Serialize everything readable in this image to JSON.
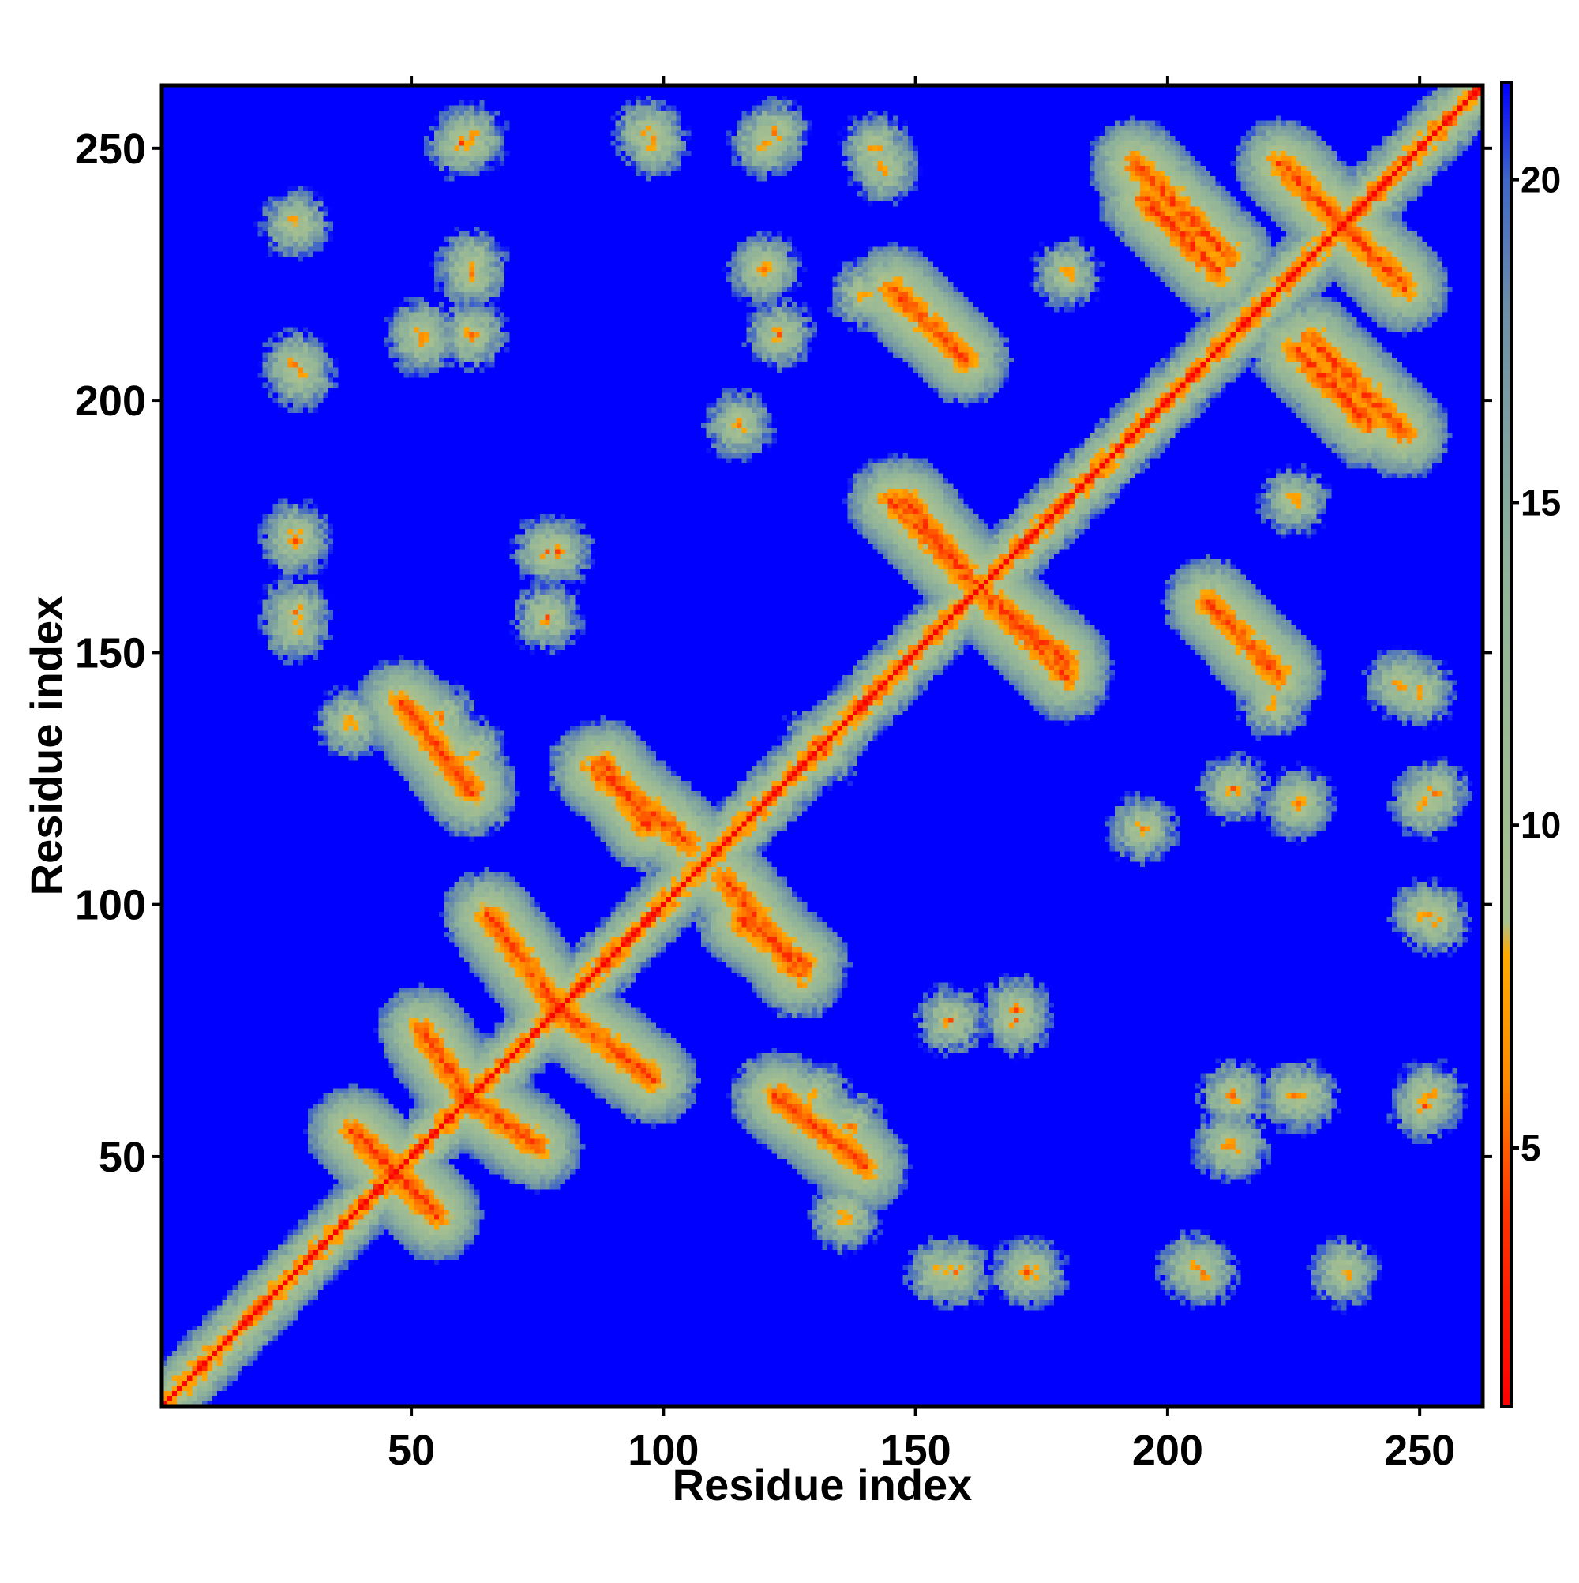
{
  "chart_data": {
    "type": "heatmap",
    "title": "",
    "xlabel": "Residue index",
    "ylabel": "Residue index",
    "xlim": [
      1,
      262
    ],
    "ylim": [
      1,
      262
    ],
    "x_ticks": [
      50,
      100,
      150,
      200,
      250
    ],
    "y_ticks": [
      50,
      100,
      150,
      200,
      250
    ],
    "x_tick_labels": [
      "50",
      "100",
      "150",
      "200",
      "250"
    ],
    "y_tick_labels": [
      "50",
      "100",
      "150",
      "200",
      "250"
    ],
    "n_residues": 262,
    "colorbar": {
      "range": [
        1,
        21.5
      ],
      "ticks": [
        5,
        10,
        15,
        20
      ],
      "tick_labels": [
        "5",
        "10",
        "15",
        "20"
      ],
      "stops": [
        {
          "value": 1,
          "color": "#ff0000"
        },
        {
          "value": 4,
          "color": "#ff3300"
        },
        {
          "value": 6,
          "color": "#ff8800"
        },
        {
          "value": 8,
          "color": "#ffaa00"
        },
        {
          "value": 8.5,
          "color": "#a9c18e"
        },
        {
          "value": 14,
          "color": "#8fb39a"
        },
        {
          "value": 18,
          "color": "#6c8fa8"
        },
        {
          "value": 20,
          "color": "#3f66c8"
        },
        {
          "value": 21.5,
          "color": "#0000ff"
        }
      ],
      "background_color": "#0000ff"
    },
    "contact_features": [
      {
        "type": "diagonal",
        "from": 1,
        "to": 262
      },
      {
        "type": "antiparallel",
        "x": [
          38,
          55
        ],
        "y": [
          55,
          38
        ]
      },
      {
        "type": "antiparallel",
        "x": [
          52,
          62
        ],
        "y": [
          75,
          60
        ]
      },
      {
        "type": "antiparallel",
        "x": [
          78,
          98
        ],
        "y": [
          80,
          65
        ]
      },
      {
        "type": "antiparallel",
        "x": [
          86,
          105
        ],
        "y": [
          127,
          112
        ]
      },
      {
        "type": "antiparallel",
        "x": [
          115,
          128
        ],
        "y": [
          97,
          88
        ]
      },
      {
        "type": "antiparallel",
        "x": [
          145,
          162
        ],
        "y": [
          180,
          163
        ]
      },
      {
        "type": "antiparallel",
        "x": [
          165,
          180
        ],
        "y": [
          160,
          148
        ]
      },
      {
        "type": "antiparallel",
        "x": [
          193,
          212
        ],
        "y": [
          247,
          228
        ]
      },
      {
        "type": "antiparallel",
        "x": [
          222,
          236
        ],
        "y": [
          247,
          233
        ]
      },
      {
        "type": "antiparallel",
        "x": [
          225,
          240
        ],
        "y": [
          210,
          195
        ]
      },
      {
        "type": "antiparallel",
        "x": [
          48,
          62
        ],
        "y": [
          140,
          122
        ]
      },
      {
        "type": "parallel",
        "x": [
          208,
          222
        ],
        "y": [
          160,
          145
        ]
      },
      {
        "type": "blob",
        "x": 27,
        "y": 207
      },
      {
        "type": "blob",
        "x": 52,
        "y": 213
      },
      {
        "type": "blob",
        "x": 62,
        "y": 225
      },
      {
        "type": "blob",
        "x": 27,
        "y": 172
      },
      {
        "type": "blob",
        "x": 27,
        "y": 158
      },
      {
        "type": "blob",
        "x": 77,
        "y": 170
      },
      {
        "type": "blob",
        "x": 77,
        "y": 157
      },
      {
        "type": "blob",
        "x": 170,
        "y": 79
      },
      {
        "type": "blob",
        "x": 173,
        "y": 27
      },
      {
        "type": "blob",
        "x": 155,
        "y": 27
      },
      {
        "type": "blob",
        "x": 137,
        "y": 56
      },
      {
        "type": "blob",
        "x": 130,
        "y": 62
      },
      {
        "type": "blob",
        "x": 205,
        "y": 28
      },
      {
        "type": "blob",
        "x": 212,
        "y": 52
      },
      {
        "type": "blob",
        "x": 213,
        "y": 62
      },
      {
        "type": "blob",
        "x": 227,
        "y": 62
      },
      {
        "type": "blob",
        "x": 235,
        "y": 27
      },
      {
        "type": "blob",
        "x": 251,
        "y": 60
      },
      {
        "type": "blob",
        "x": 251,
        "y": 98
      },
      {
        "type": "blob",
        "x": 251,
        "y": 120
      },
      {
        "type": "blob",
        "x": 221,
        "y": 140
      },
      {
        "type": "blob",
        "x": 226,
        "y": 120
      },
      {
        "type": "blob",
        "x": 246,
        "y": 144
      },
      {
        "type": "blob",
        "x": 180,
        "y": 225
      },
      {
        "type": "blob",
        "x": 155,
        "y": 213
      },
      {
        "type": "blob",
        "x": 123,
        "y": 213
      },
      {
        "type": "blob",
        "x": 115,
        "y": 195
      },
      {
        "type": "blob",
        "x": 120,
        "y": 226
      },
      {
        "type": "blob",
        "x": 97,
        "y": 253
      },
      {
        "type": "blob",
        "x": 122,
        "y": 253
      },
      {
        "type": "blob",
        "x": 142,
        "y": 250
      },
      {
        "type": "blob",
        "x": 62,
        "y": 252
      },
      {
        "type": "blob",
        "x": 38,
        "y": 136
      },
      {
        "type": "blob",
        "x": 130,
        "y": 132
      }
    ]
  }
}
